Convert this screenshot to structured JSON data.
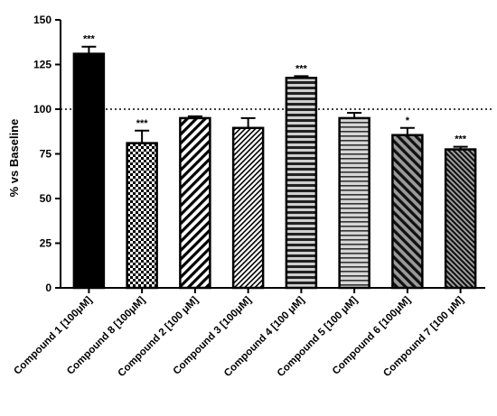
{
  "chart_data": {
    "type": "bar",
    "title": "",
    "xlabel": "",
    "ylabel": "% vs Baseline",
    "ylim": [
      0,
      150
    ],
    "yticks": [
      "0",
      "25",
      "50",
      "75",
      "100",
      "125",
      "150"
    ],
    "reference_line": 100,
    "grid": false,
    "categories": [
      "Compound 1 [100μM]",
      "Compound 8 [100μM]",
      "Compound 2 [100 μM]",
      "Compound 3 [100μM]",
      "Compound 4 [100 μM]",
      "Compound 5 [100 μM]",
      "Compound 6 [100μM]",
      "Compound 7 [100 μM]"
    ],
    "values": [
      131,
      81,
      95,
      89.5,
      117.5,
      95,
      85.5,
      77.5
    ],
    "errors": [
      4,
      7,
      1,
      5.5,
      1,
      3,
      4,
      1.5
    ],
    "significance": [
      "***",
      "***",
      "",
      "",
      "***",
      "",
      "*",
      "***"
    ],
    "bar_fills": [
      "solid-black",
      "checker",
      "diag-down-wide",
      "diag-down-fine",
      "horizontal-stripes",
      "horizontal-light",
      "diag-up-dark",
      "diag-up-fine-dark"
    ]
  }
}
